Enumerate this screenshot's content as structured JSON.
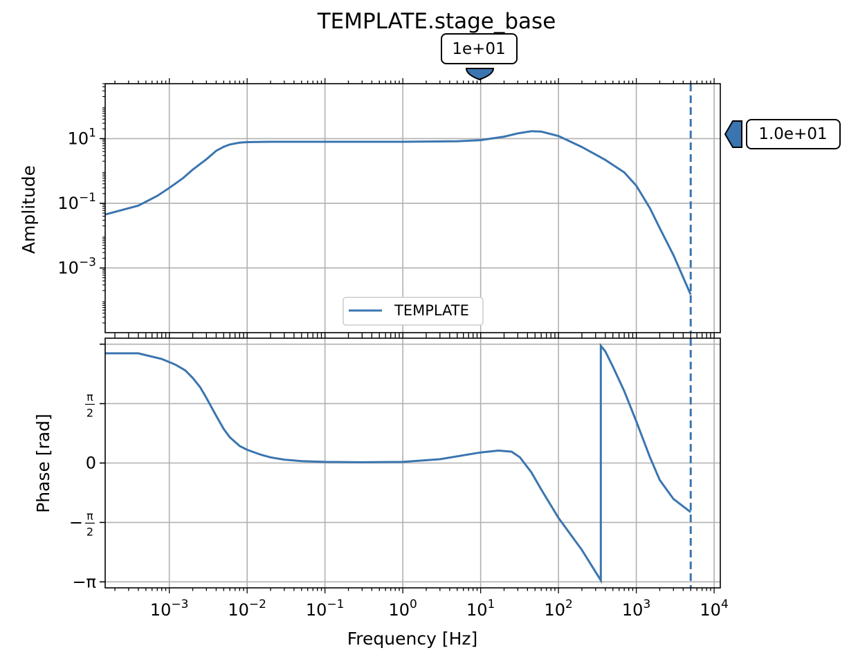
{
  "title": "TEMPLATE.stage_base",
  "top_marker_label": "1e+01",
  "right_marker_label": "1.0e+01",
  "colors": {
    "line": "#3a75b0",
    "grid": "#b0b0b0",
    "badge_fill": "#3a75b0"
  },
  "chart_data": [
    {
      "type": "line",
      "panel": "amplitude",
      "title": "TEMPLATE.stage_base",
      "xlabel": "",
      "ylabel": "Amplitude",
      "xscale": "log",
      "yscale": "log",
      "xlim": [
        0.00015,
        12000
      ],
      "ylim": [
        1e-05,
        500
      ],
      "yticks": [
        {
          "value": 0.001,
          "base": "10",
          "exp": "−3"
        },
        {
          "value": 0.1,
          "base": "10",
          "exp": "−1"
        },
        {
          "value": 10,
          "base": "10",
          "exp": "1"
        }
      ],
      "grid": true,
      "legend": {
        "position": "lower-center",
        "entries": [
          "TEMPLATE"
        ]
      },
      "series": [
        {
          "name": "TEMPLATE",
          "x": [
            0.00015,
            0.0004,
            0.0007,
            0.001,
            0.0015,
            0.002,
            0.003,
            0.004,
            0.005,
            0.006,
            0.008,
            0.01,
            0.02,
            0.05,
            0.1,
            1,
            5,
            10,
            20,
            30,
            45,
            60,
            100,
            200,
            400,
            700,
            1000,
            1500,
            2000,
            3000,
            5000
          ],
          "y": [
            0.045,
            0.085,
            0.17,
            0.3,
            0.6,
            1.1,
            2.3,
            4.2,
            5.6,
            6.6,
            7.5,
            7.8,
            8.0,
            8.0,
            8.0,
            8.0,
            8.3,
            9.0,
            11.5,
            14.5,
            17.0,
            16.5,
            12.0,
            5.5,
            2.2,
            0.9,
            0.35,
            0.07,
            0.017,
            0.0025,
            0.00015
          ]
        }
      ],
      "vline": {
        "x": 5000,
        "style": "dashed"
      }
    },
    {
      "type": "line",
      "panel": "phase",
      "xlabel": "Frequency [Hz]",
      "ylabel": "Phase [rad]",
      "xscale": "log",
      "xlim": [
        0.00015,
        12000
      ],
      "ylim": [
        -3.3,
        3.3
      ],
      "xticks": [
        {
          "value": 0.001,
          "base": "10",
          "exp": "−3"
        },
        {
          "value": 0.01,
          "base": "10",
          "exp": "−2"
        },
        {
          "value": 0.1,
          "base": "10",
          "exp": "−1"
        },
        {
          "value": 1,
          "base": "10",
          "exp": "0"
        },
        {
          "value": 10,
          "base": "10",
          "exp": "1"
        },
        {
          "value": 100,
          "base": "10",
          "exp": "2"
        },
        {
          "value": 1000,
          "base": "10",
          "exp": "3"
        },
        {
          "value": 10000,
          "base": "10",
          "exp": "4"
        }
      ],
      "yticks": [
        {
          "value": 3.1416,
          "kind": "blank"
        },
        {
          "value": 1.5708,
          "kind": "frac",
          "sign": "",
          "num": "π",
          "den": "2"
        },
        {
          "value": 0,
          "kind": "plain",
          "text": "0"
        },
        {
          "value": -1.5708,
          "kind": "frac",
          "sign": "−",
          "num": "π",
          "den": "2"
        },
        {
          "value": -3.1416,
          "kind": "plain",
          "text": "−π"
        }
      ],
      "grid": true,
      "series": [
        {
          "name": "TEMPLATE",
          "x": [
            0.00015,
            0.0004,
            0.0008,
            0.0012,
            0.0016,
            0.002,
            0.0025,
            0.003,
            0.004,
            0.005,
            0.006,
            0.008,
            0.01,
            0.015,
            0.02,
            0.03,
            0.05,
            0.1,
            0.3,
            1,
            3,
            10,
            17,
            25,
            32,
            45,
            60,
            100,
            200,
            350,
            350,
            400,
            500,
            700,
            1000,
            1500,
            2000,
            3000,
            5000
          ],
          "y": [
            2.9,
            2.9,
            2.75,
            2.6,
            2.45,
            2.25,
            2.0,
            1.72,
            1.25,
            0.9,
            0.68,
            0.45,
            0.35,
            0.22,
            0.15,
            0.09,
            0.05,
            0.03,
            0.02,
            0.03,
            0.1,
            0.28,
            0.33,
            0.3,
            0.15,
            -0.25,
            -0.7,
            -1.45,
            -2.3,
            -3.1,
            3.1,
            2.95,
            2.55,
            1.9,
            1.1,
            0.15,
            -0.45,
            -0.95,
            -1.3
          ]
        }
      ],
      "vline": {
        "x": 5000,
        "style": "dashed"
      }
    }
  ]
}
